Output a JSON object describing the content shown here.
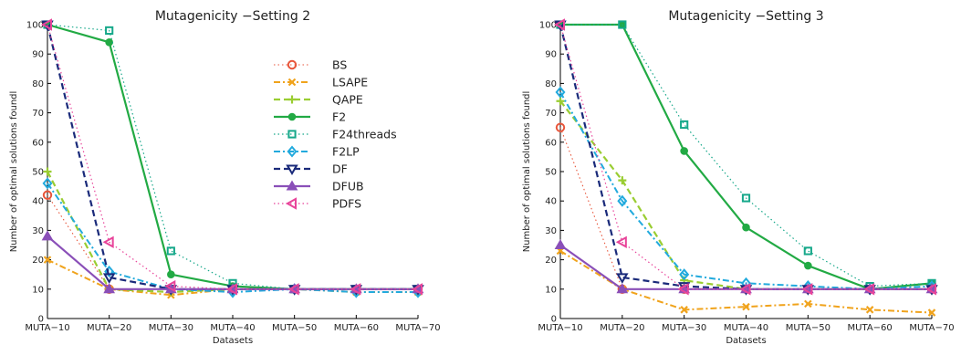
{
  "chart_data": [
    {
      "type": "line",
      "title": "Mutagenicity −Setting 2",
      "xlabel": "Datasets",
      "ylabel": "Number of optimal solutions foundl",
      "categories": [
        "MUTA−10",
        "MUTA−20",
        "MUTA−30",
        "MUTA−40",
        "MUTA−50",
        "MUTA−60",
        "MUTA−70"
      ],
      "ylim": [
        0,
        100
      ],
      "yticks": [
        0,
        10,
        20,
        30,
        40,
        50,
        60,
        70,
        80,
        90,
        100
      ],
      "legend": "inside, upper middle",
      "grid": false,
      "series": [
        {
          "name": "BS",
          "values": [
            42,
            10,
            10,
            10,
            10,
            10,
            10
          ]
        },
        {
          "name": "LSAPE",
          "values": [
            20,
            10,
            8,
            10,
            10,
            9,
            9
          ]
        },
        {
          "name": "QAPE",
          "values": [
            50,
            10,
            9,
            10,
            10,
            10,
            10
          ]
        },
        {
          "name": "F2",
          "values": [
            100,
            94,
            15,
            11,
            10,
            10,
            10
          ]
        },
        {
          "name": "F24threads",
          "values": [
            100,
            98,
            23,
            12,
            10,
            10,
            10
          ]
        },
        {
          "name": "F2LP",
          "values": [
            46,
            16,
            10,
            9,
            10,
            9,
            9
          ]
        },
        {
          "name": "DF",
          "values": [
            100,
            14,
            10,
            10,
            10,
            10,
            10
          ]
        },
        {
          "name": "DFUB",
          "values": [
            28,
            10,
            10,
            10,
            10,
            10,
            10
          ]
        },
        {
          "name": "PDFS",
          "values": [
            100,
            26,
            11,
            10,
            10,
            10,
            10
          ]
        }
      ]
    },
    {
      "type": "line",
      "title": "Mutagenicity −Setting 3",
      "xlabel": "Datasets",
      "ylabel": "Number of optimal solutions foundl",
      "categories": [
        "MUTA−10",
        "MUTA−20",
        "MUTA−30",
        "MUTA−40",
        "MUTA−50",
        "MUTA−60",
        "MUTA−70"
      ],
      "ylim": [
        0,
        100
      ],
      "yticks": [
        0,
        10,
        20,
        30,
        40,
        50,
        60,
        70,
        80,
        90,
        100
      ],
      "grid": false,
      "series": [
        {
          "name": "BS",
          "values": [
            65,
            10,
            10,
            10,
            10,
            10,
            10
          ]
        },
        {
          "name": "LSAPE",
          "values": [
            23,
            10,
            3,
            4,
            5,
            3,
            2
          ]
        },
        {
          "name": "QAPE",
          "values": [
            74,
            47,
            13,
            10,
            10,
            10,
            10
          ]
        },
        {
          "name": "F2",
          "values": [
            100,
            100,
            57,
            31,
            18,
            10,
            12
          ]
        },
        {
          "name": "F24threads",
          "values": [
            100,
            100,
            66,
            41,
            23,
            11,
            12
          ]
        },
        {
          "name": "F2LP",
          "values": [
            77,
            40,
            15,
            12,
            11,
            10,
            11
          ]
        },
        {
          "name": "DF",
          "values": [
            100,
            14,
            11,
            10,
            10,
            10,
            10
          ]
        },
        {
          "name": "DFUB",
          "values": [
            25,
            10,
            10,
            10,
            10,
            10,
            10
          ]
        },
        {
          "name": "PDFS",
          "values": [
            100,
            26,
            10,
            10,
            10,
            10,
            10
          ]
        }
      ]
    }
  ],
  "styles": {
    "BS": {
      "color": "#e8553a",
      "marker": "circle",
      "dash": "1.5 3",
      "width": 1.1
    },
    "LSAPE": {
      "color": "#f0a31c",
      "marker": "x",
      "dash": "7 3 2 3",
      "width": 2
    },
    "QAPE": {
      "color": "#9acd32",
      "marker": "plus",
      "dash": "7 4",
      "width": 2.2
    },
    "F2": {
      "color": "#22aa44",
      "marker": "filled-circle",
      "dash": "",
      "width": 2.2
    },
    "F24threads": {
      "color": "#16a88a",
      "marker": "square",
      "dash": "1.5 3",
      "width": 1.2
    },
    "F2LP": {
      "color": "#22aadd",
      "marker": "diamond",
      "dash": "7 3 2 3",
      "width": 2
    },
    "DF": {
      "color": "#1a2a7a",
      "marker": "triangle-down",
      "dash": "7 4",
      "width": 2.2
    },
    "DFUB": {
      "color": "#8a4fb8",
      "marker": "triangle-up",
      "dash": "",
      "width": 2.2
    },
    "PDFS": {
      "color": "#e8449a",
      "marker": "triangle-left",
      "dash": "1.5 3",
      "width": 1.2
    }
  }
}
